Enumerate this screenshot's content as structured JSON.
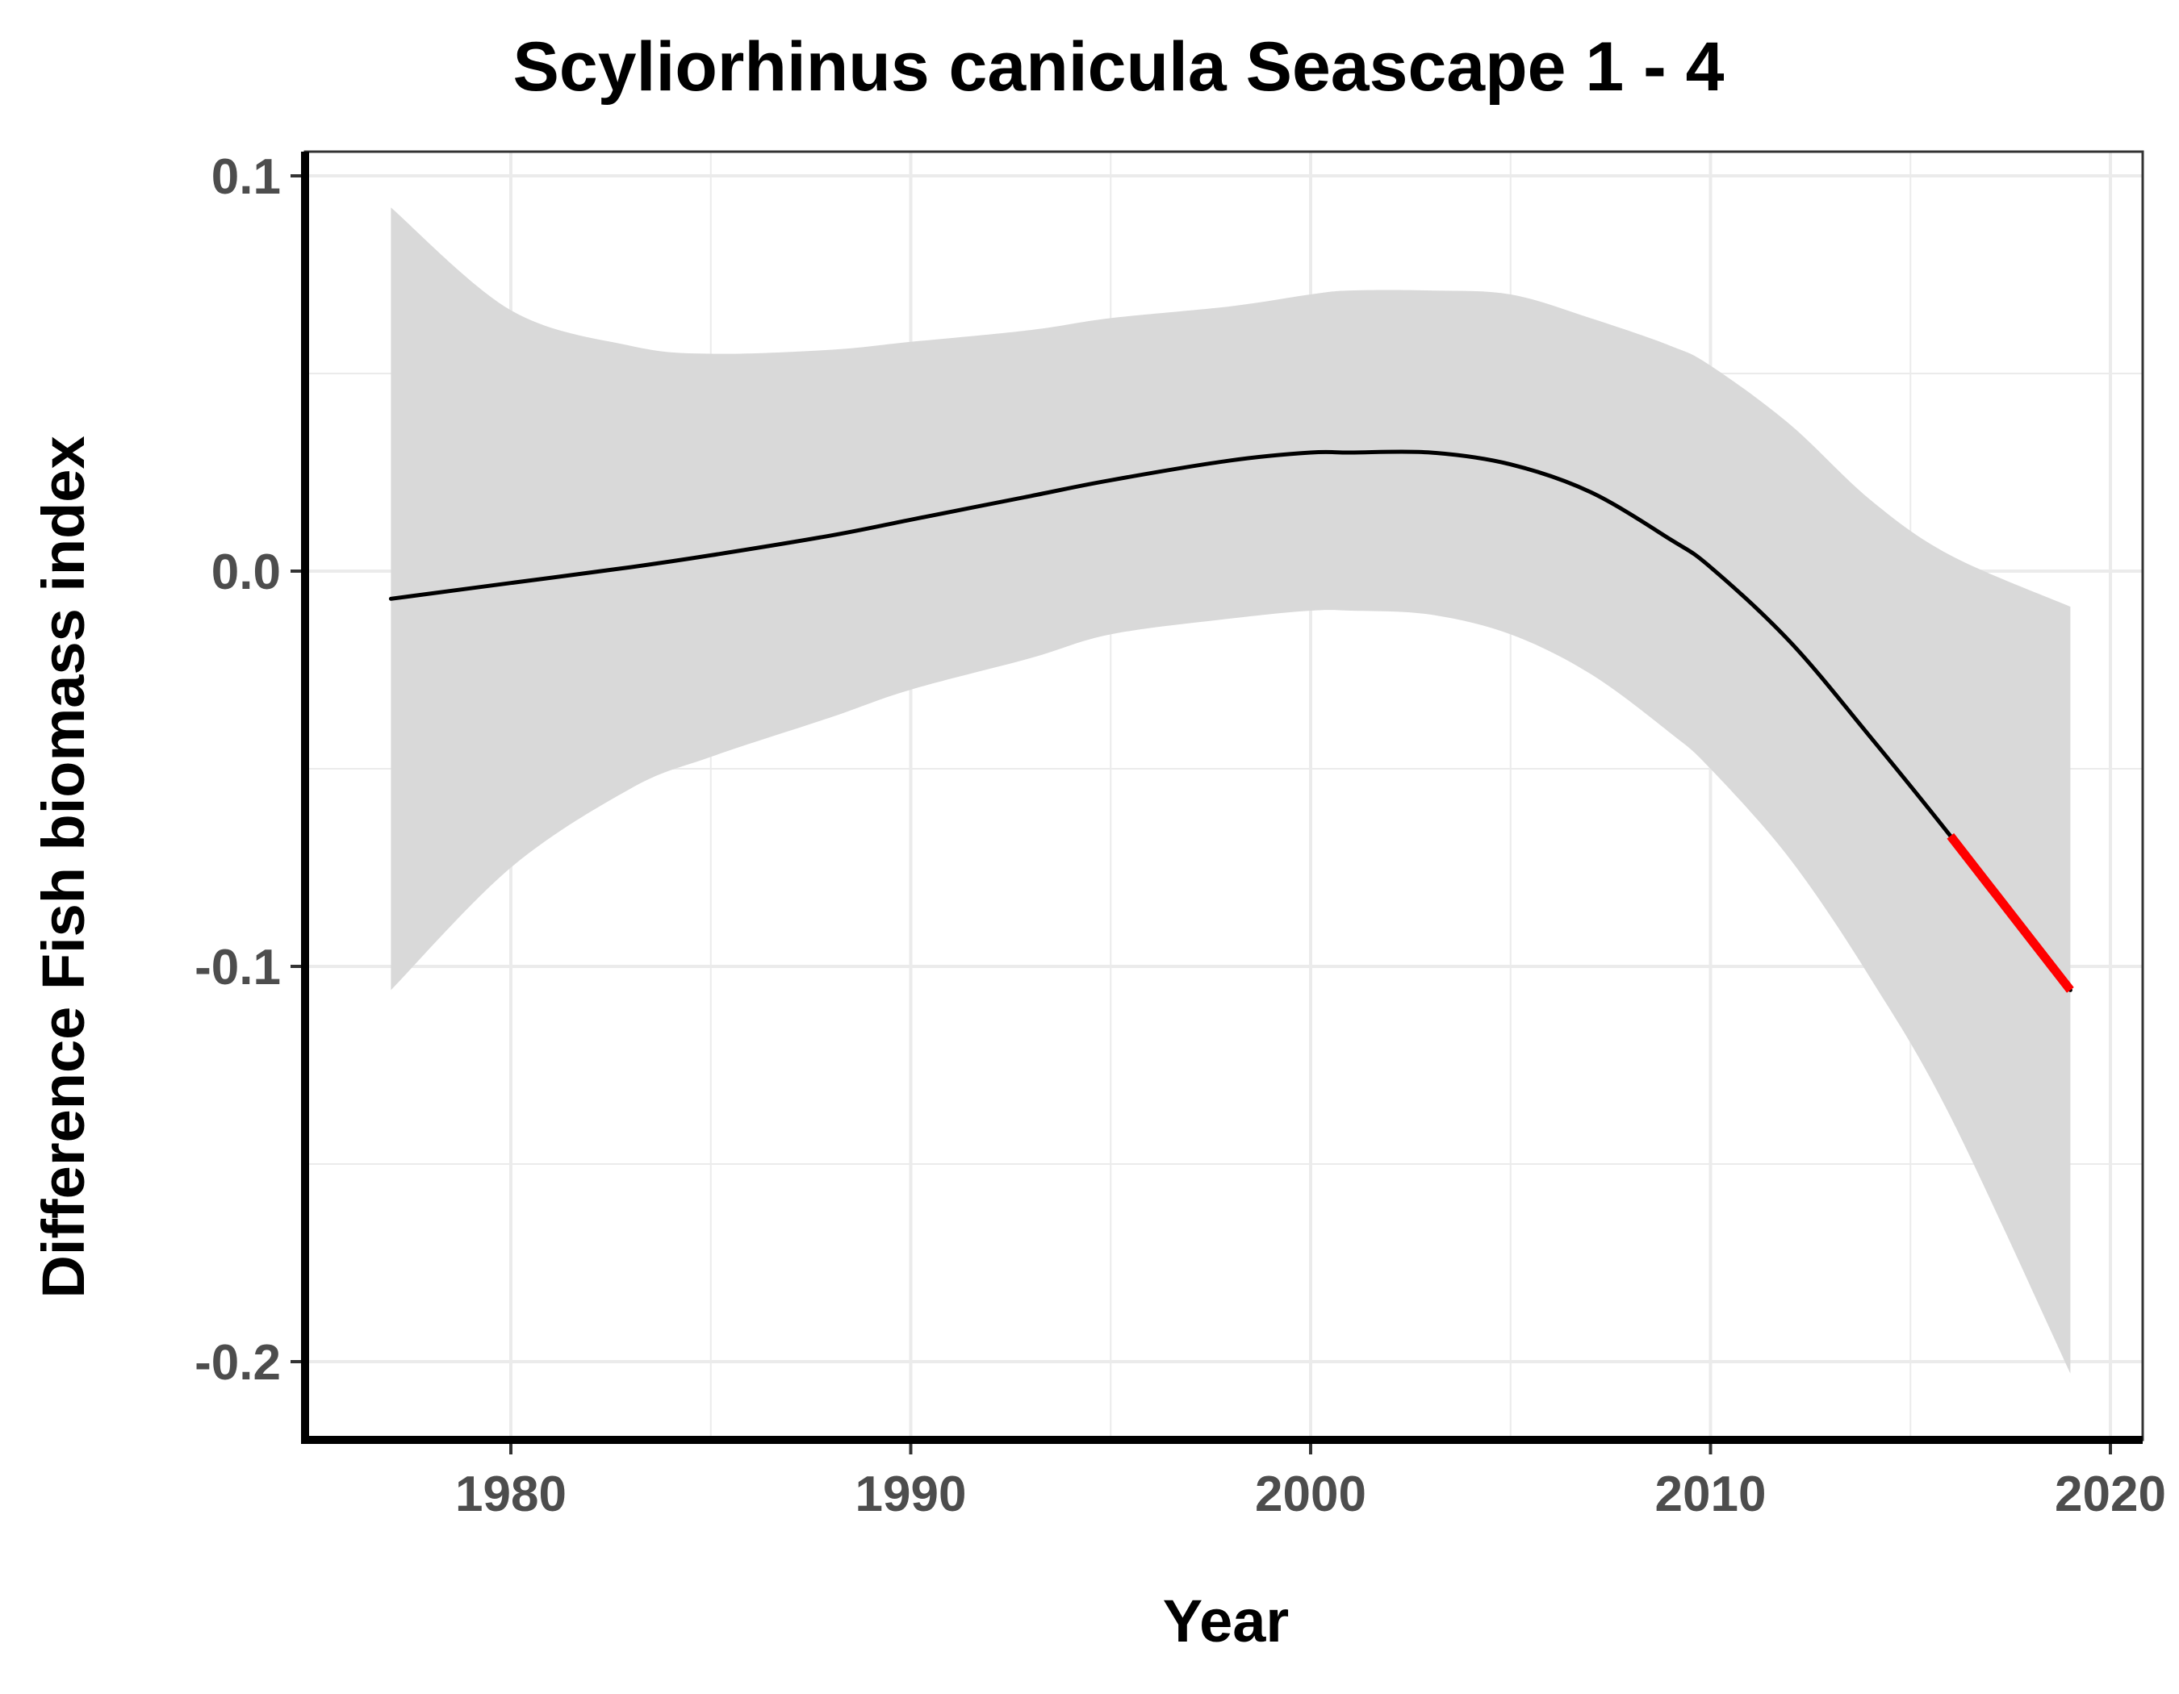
{
  "chart_data": {
    "type": "line",
    "title": "Scyliorhinus canicula Seascape 1 - 4",
    "xlabel": "Year",
    "ylabel": "Difference Fish biomass index",
    "xlim": [
      1975,
      2021
    ],
    "ylim": [
      -0.217,
      0.105
    ],
    "x_ticks": [
      1980,
      1990,
      2000,
      2010,
      2020
    ],
    "x_tick_labels": [
      "1980",
      "1990",
      "2000",
      "2010",
      "2020"
    ],
    "y_ticks": [
      -0.2,
      -0.1,
      0.0,
      0.1
    ],
    "y_tick_labels": [
      "-0.2",
      "-0.1",
      "0.0",
      "0.1"
    ],
    "grid": true,
    "colors": {
      "trend_line": "#000000",
      "highlight_line": "#ff0000",
      "confidence_band": "#d9d9d9",
      "grid": "#ebebeb"
    },
    "series": [
      {
        "x": [
          1977,
          1980,
          1983,
          1985,
          1988,
          1990,
          1993,
          1995,
          1998,
          2000,
          2001,
          2003,
          2005,
          2007,
          2009,
          2010,
          2012,
          2014,
          2016,
          2019
        ],
        "y": [
          -0.007,
          -0.003,
          0.001,
          0.004,
          0.009,
          0.013,
          0.019,
          0.023,
          0.028,
          0.03,
          0.03,
          0.03,
          0.027,
          0.02,
          0.008,
          0.001,
          -0.018,
          -0.042,
          -0.067,
          -0.106
        ],
        "lower": [
          -0.106,
          -0.075,
          -0.055,
          -0.047,
          -0.037,
          -0.03,
          -0.022,
          -0.016,
          -0.012,
          -0.01,
          -0.01,
          -0.011,
          -0.016,
          -0.026,
          -0.041,
          -0.05,
          -0.073,
          -0.103,
          -0.138,
          -0.203
        ],
        "upper": [
          0.092,
          0.066,
          0.057,
          0.055,
          0.056,
          0.058,
          0.061,
          0.064,
          0.067,
          0.07,
          0.071,
          0.071,
          0.07,
          0.064,
          0.057,
          0.052,
          0.037,
          0.018,
          0.004,
          -0.009
        ]
      },
      {
        "x": [
          2016,
          2017,
          2018,
          2019
        ],
        "y": [
          -0.067,
          -0.08,
          -0.093,
          -0.106
        ]
      }
    ]
  }
}
